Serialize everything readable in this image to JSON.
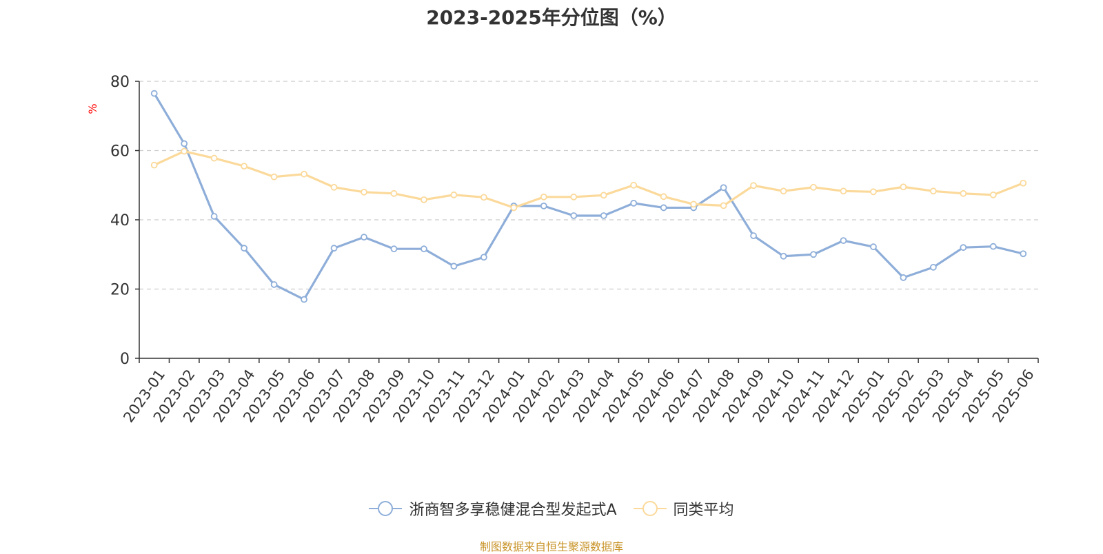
{
  "chart_data": {
    "type": "line",
    "title": "2023-2025年分位图（%）",
    "ylabel": "%",
    "ylim": [
      0,
      80
    ],
    "yticks": [
      0,
      20,
      40,
      60,
      80
    ],
    "grid": true,
    "legend_position": "bottom",
    "categories": [
      "2023-01",
      "2023-02",
      "2023-03",
      "2023-04",
      "2023-05",
      "2023-06",
      "2023-07",
      "2023-08",
      "2023-09",
      "2023-10",
      "2023-11",
      "2023-12",
      "2024-01",
      "2024-02",
      "2024-03",
      "2024-04",
      "2024-05",
      "2024-06",
      "2024-07",
      "2024-08",
      "2024-09",
      "2024-10",
      "2024-11",
      "2024-12",
      "2025-01",
      "2025-02",
      "2025-03",
      "2025-04",
      "2025-05",
      "2025-06"
    ],
    "series": [
      {
        "name": "浙商智多享稳健混合型发起式A",
        "color": "#8eaed9",
        "values": [
          76.5,
          62.0,
          41.0,
          31.8,
          21.3,
          17.0,
          31.8,
          35.0,
          31.6,
          31.6,
          26.6,
          29.2,
          44.0,
          44.0,
          41.2,
          41.2,
          44.8,
          43.5,
          43.5,
          49.3,
          35.4,
          29.5,
          30.0,
          34.0,
          32.2,
          23.3,
          26.3,
          32.0,
          32.3,
          30.2
        ]
      },
      {
        "name": "同类平均",
        "color": "#fbd99a",
        "values": [
          55.8,
          59.8,
          57.8,
          55.5,
          52.4,
          53.2,
          49.4,
          48.0,
          47.6,
          45.8,
          47.2,
          46.5,
          43.5,
          46.6,
          46.6,
          47.1,
          50.0,
          46.7,
          44.5,
          44.1,
          49.9,
          48.3,
          49.4,
          48.3,
          48.1,
          49.5,
          48.3,
          47.6,
          47.2,
          50.6
        ]
      }
    ]
  },
  "source_note": {
    "text": "制图数据来自恒生聚源数据库",
    "color": "#c9952b"
  },
  "colors": {
    "axis": "#333333",
    "grid": "#cccccc",
    "ylabel": "#ff0000"
  }
}
